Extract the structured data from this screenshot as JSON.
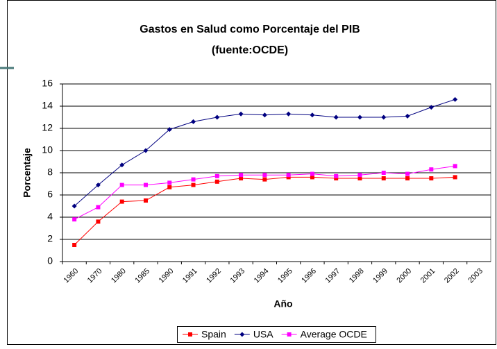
{
  "chart_data": {
    "type": "line",
    "title": "Gastos en Salud como Porcentaje del PIB",
    "subtitle": "(fuente:OCDE)",
    "x_label": "Año",
    "y_label": "Porcentaje",
    "categories": [
      "1960",
      "1970",
      "1980",
      "1985",
      "1990",
      "1991",
      "1992",
      "1993",
      "1994",
      "1995",
      "1996",
      "1997",
      "1998",
      "1999",
      "2000",
      "2001",
      "2002",
      "2003"
    ],
    "series": [
      {
        "name": "Spain",
        "color": "#ff0000",
        "marker": "square",
        "values": [
          1.5,
          3.6,
          5.4,
          5.5,
          6.7,
          6.9,
          7.2,
          7.5,
          7.4,
          7.6,
          7.6,
          7.5,
          7.5,
          7.5,
          7.5,
          7.5,
          7.6,
          null
        ]
      },
      {
        "name": "USA",
        "color": "#000080",
        "marker": "diamond",
        "values": [
          5.0,
          6.9,
          8.7,
          10.0,
          11.9,
          12.6,
          13.0,
          13.3,
          13.2,
          13.3,
          13.2,
          13.0,
          13.0,
          13.0,
          13.1,
          13.9,
          14.6,
          null
        ]
      },
      {
        "name": "Average OCDE",
        "color": "#ff00ff",
        "marker": "square",
        "values": [
          3.8,
          4.9,
          6.9,
          6.9,
          7.1,
          7.4,
          7.7,
          7.8,
          7.8,
          7.8,
          7.9,
          7.7,
          7.8,
          8.0,
          7.9,
          8.3,
          8.6,
          null
        ]
      }
    ],
    "ylim": [
      0,
      16
    ],
    "yticks": [
      0,
      2,
      4,
      6,
      8,
      10,
      12,
      14,
      16
    ],
    "grid": true,
    "legend": "bottom"
  }
}
